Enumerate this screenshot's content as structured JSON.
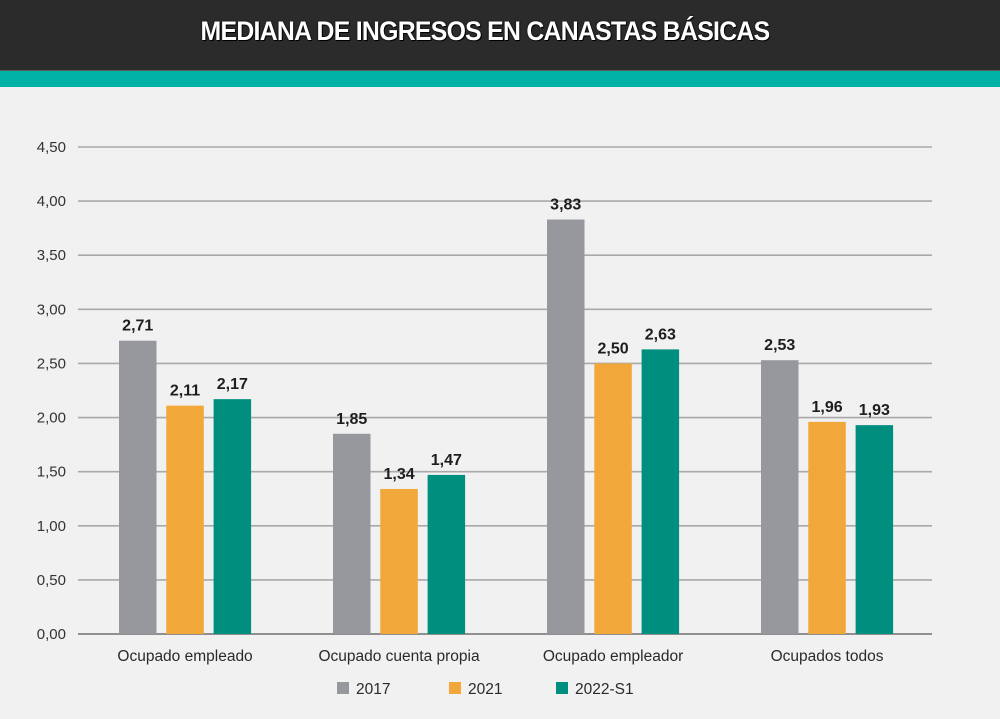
{
  "header": {
    "title": "MEDIANA DE INGRESOS EN CANASTAS BÁSICAS"
  },
  "colors": {
    "header_bg": "#2b2b2c",
    "stripe": "#00b2a5",
    "series_2017": "#97989d",
    "series_2021": "#f1a73a",
    "series_2022": "#008f7f"
  },
  "chart_data": {
    "type": "bar",
    "title": "MEDIANA DE INGRESOS EN CANASTAS BÁSICAS",
    "xlabel": "",
    "ylabel": "",
    "ylim": [
      0,
      4.5
    ],
    "yticks": [
      "0,00",
      "0,50",
      "1,00",
      "1,50",
      "2,00",
      "2,50",
      "3,00",
      "3,50",
      "4,00",
      "4,50"
    ],
    "ytick_values": [
      0,
      0.5,
      1,
      1.5,
      2,
      2.5,
      3,
      3.5,
      4,
      4.5
    ],
    "grid": true,
    "legend_position": "bottom",
    "categories": [
      "Ocupado empleado",
      "Ocupado cuenta propia",
      "Ocupado empleador",
      "Ocupados todos"
    ],
    "series": [
      {
        "name": "2017",
        "color": "#97989d",
        "values": [
          2.71,
          1.85,
          3.83,
          2.53
        ],
        "labels": [
          "2,71",
          "1,85",
          "3,83",
          "2,53"
        ]
      },
      {
        "name": "2021",
        "color": "#f1a73a",
        "values": [
          2.11,
          1.34,
          2.5,
          1.96
        ],
        "labels": [
          "2,11",
          "1,34",
          "2,50",
          "1,96"
        ]
      },
      {
        "name": "2022-S1",
        "color": "#008f7f",
        "values": [
          2.17,
          1.47,
          2.63,
          1.93
        ],
        "labels": [
          "2,17",
          "1,47",
          "2,63",
          "1,93"
        ]
      }
    ]
  }
}
